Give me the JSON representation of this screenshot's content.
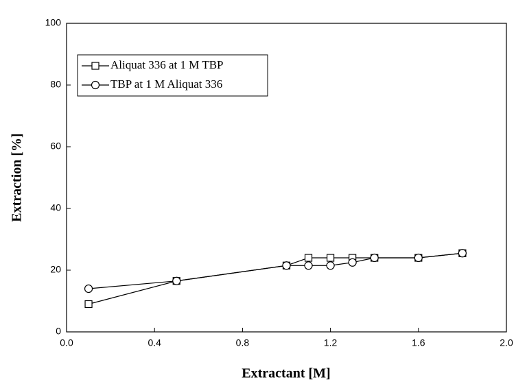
{
  "chart_data": {
    "type": "line",
    "xlabel": "Extractant [M]",
    "ylabel": "Extraction [%]",
    "xlim": [
      0,
      2
    ],
    "ylim": [
      0,
      100
    ],
    "xticks": [
      {
        "value": 0,
        "label": "0.0"
      },
      0.4,
      0.8,
      1.2,
      1.6,
      {
        "value": 2,
        "label": "2.0"
      }
    ],
    "yticks": [
      0,
      20,
      40,
      60,
      80,
      100
    ],
    "legend": "upper left",
    "series": [
      {
        "name": "Aliquat 336 at 1 M TBP",
        "color": "#000000",
        "marker": "square",
        "x": [
          0.1,
          0.5,
          1.0,
          1.1,
          1.2,
          1.3,
          1.4,
          1.6,
          1.8
        ],
        "values": [
          9,
          16.5,
          21.5,
          24,
          24,
          24,
          24,
          24,
          25.5
        ]
      },
      {
        "name": "TBP at 1 M Aliquat 336",
        "color": "#000000",
        "marker": "circle",
        "x": [
          0.1,
          0.5,
          1.0,
          1.1,
          1.2,
          1.3,
          1.4,
          1.6,
          1.8
        ],
        "values": [
          14,
          16.5,
          21.5,
          21.5,
          21.5,
          22.5,
          24,
          24,
          25.5
        ]
      }
    ]
  }
}
